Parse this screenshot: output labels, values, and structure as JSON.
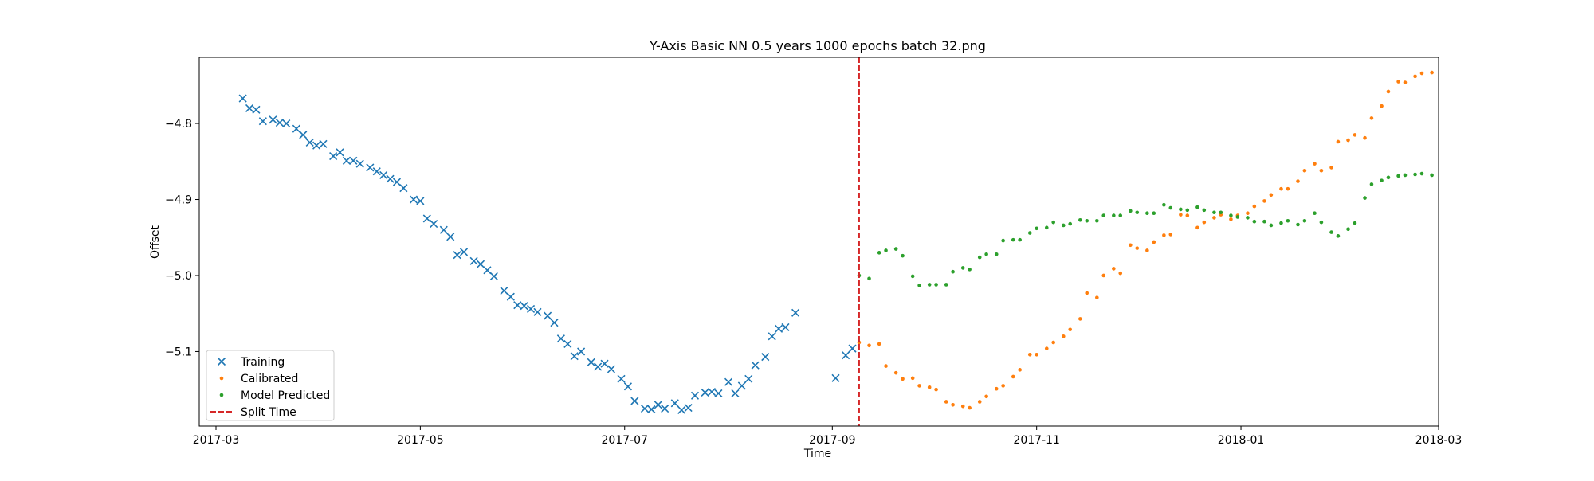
{
  "chart_data": {
    "type": "scatter",
    "title": "Y-Axis Basic NN 0.5 years 1000 epochs batch 32.png",
    "xlabel": "Time",
    "ylabel": "Offset",
    "xlim": [
      "2017-02-24",
      "2018-03-01"
    ],
    "ylim": [
      -5.198,
      -4.713
    ],
    "x_ticks": [
      "2017-03-01",
      "2017-05-01",
      "2017-07-01",
      "2017-09-01",
      "2017-11-01",
      "2018-01-01",
      "2018-03-01"
    ],
    "x_tick_labels": [
      "2017-03",
      "2017-05",
      "2017-07",
      "2017-09",
      "2017-11",
      "2018-01",
      "2018-03"
    ],
    "y_ticks": [
      -5.1,
      -5.0,
      -4.9,
      -4.8
    ],
    "y_tick_labels": [
      "−5.1",
      "−5.0",
      "−4.9",
      "−4.8"
    ],
    "grid": false,
    "legend_position": "lower-left",
    "split_time": "2017-09-09",
    "series": [
      {
        "name": "Training",
        "marker": "x",
        "color": "#1f77b4",
        "points": [
          [
            "2017-03-09",
            -4.767
          ],
          [
            "2017-03-11",
            -4.78
          ],
          [
            "2017-03-13",
            -4.782
          ],
          [
            "2017-03-15",
            -4.797
          ],
          [
            "2017-03-18",
            -4.795
          ],
          [
            "2017-03-20",
            -4.799
          ],
          [
            "2017-03-22",
            -4.8
          ],
          [
            "2017-03-25",
            -4.807
          ],
          [
            "2017-03-27",
            -4.815
          ],
          [
            "2017-03-29",
            -4.825
          ],
          [
            "2017-03-31",
            -4.829
          ],
          [
            "2017-04-02",
            -4.827
          ],
          [
            "2017-04-05",
            -4.843
          ],
          [
            "2017-04-07",
            -4.838
          ],
          [
            "2017-04-09",
            -4.849
          ],
          [
            "2017-04-11",
            -4.849
          ],
          [
            "2017-04-13",
            -4.853
          ],
          [
            "2017-04-16",
            -4.858
          ],
          [
            "2017-04-18",
            -4.863
          ],
          [
            "2017-04-20",
            -4.868
          ],
          [
            "2017-04-22",
            -4.873
          ],
          [
            "2017-04-24",
            -4.877
          ],
          [
            "2017-04-26",
            -4.885
          ],
          [
            "2017-04-29",
            -4.9
          ],
          [
            "2017-05-01",
            -4.902
          ],
          [
            "2017-05-03",
            -4.925
          ],
          [
            "2017-05-05",
            -4.932
          ],
          [
            "2017-05-08",
            -4.94
          ],
          [
            "2017-05-10",
            -4.949
          ],
          [
            "2017-05-12",
            -4.973
          ],
          [
            "2017-05-14",
            -4.969
          ],
          [
            "2017-05-17",
            -4.981
          ],
          [
            "2017-05-19",
            -4.985
          ],
          [
            "2017-05-21",
            -4.993
          ],
          [
            "2017-05-23",
            -5.001
          ],
          [
            "2017-05-26",
            -5.02
          ],
          [
            "2017-05-28",
            -5.028
          ],
          [
            "2017-05-30",
            -5.039
          ],
          [
            "2017-06-01",
            -5.04
          ],
          [
            "2017-06-03",
            -5.044
          ],
          [
            "2017-06-05",
            -5.048
          ],
          [
            "2017-06-08",
            -5.053
          ],
          [
            "2017-06-10",
            -5.062
          ],
          [
            "2017-06-12",
            -5.083
          ],
          [
            "2017-06-14",
            -5.09
          ],
          [
            "2017-06-16",
            -5.106
          ],
          [
            "2017-06-18",
            -5.1
          ],
          [
            "2017-06-21",
            -5.114
          ],
          [
            "2017-06-23",
            -5.12
          ],
          [
            "2017-06-25",
            -5.116
          ],
          [
            "2017-06-27",
            -5.123
          ],
          [
            "2017-06-30",
            -5.136
          ],
          [
            "2017-07-02",
            -5.146
          ],
          [
            "2017-07-04",
            -5.165
          ],
          [
            "2017-07-07",
            -5.175
          ],
          [
            "2017-07-09",
            -5.176
          ],
          [
            "2017-07-11",
            -5.17
          ],
          [
            "2017-07-13",
            -5.175
          ],
          [
            "2017-07-16",
            -5.168
          ],
          [
            "2017-07-18",
            -5.177
          ],
          [
            "2017-07-20",
            -5.174
          ],
          [
            "2017-07-22",
            -5.158
          ],
          [
            "2017-07-25",
            -5.154
          ],
          [
            "2017-07-27",
            -5.153
          ],
          [
            "2017-07-29",
            -5.155
          ],
          [
            "2017-08-01",
            -5.14
          ],
          [
            "2017-08-03",
            -5.155
          ],
          [
            "2017-08-05",
            -5.145
          ],
          [
            "2017-08-07",
            -5.136
          ],
          [
            "2017-08-09",
            -5.118
          ],
          [
            "2017-08-12",
            -5.107
          ],
          [
            "2017-08-14",
            -5.08
          ],
          [
            "2017-08-16",
            -5.07
          ],
          [
            "2017-08-18",
            -5.068
          ],
          [
            "2017-08-21",
            -5.049
          ],
          [
            "2017-09-02",
            -5.135
          ],
          [
            "2017-09-05",
            -5.105
          ],
          [
            "2017-09-07",
            -5.096
          ]
        ]
      },
      {
        "name": "Calibrated",
        "marker": ".",
        "color": "#ff7f0e",
        "points": [
          [
            "2017-09-09",
            -5.088
          ],
          [
            "2017-09-12",
            -5.092
          ],
          [
            "2017-09-15",
            -5.09
          ],
          [
            "2017-09-17",
            -5.119
          ],
          [
            "2017-09-20",
            -5.128
          ],
          [
            "2017-09-22",
            -5.136
          ],
          [
            "2017-09-25",
            -5.135
          ],
          [
            "2017-09-27",
            -5.145
          ],
          [
            "2017-09-30",
            -5.147
          ],
          [
            "2017-10-02",
            -5.15
          ],
          [
            "2017-10-05",
            -5.166
          ],
          [
            "2017-10-07",
            -5.17
          ],
          [
            "2017-10-10",
            -5.172
          ],
          [
            "2017-10-12",
            -5.174
          ],
          [
            "2017-10-15",
            -5.166
          ],
          [
            "2017-10-17",
            -5.159
          ],
          [
            "2017-10-20",
            -5.149
          ],
          [
            "2017-10-22",
            -5.145
          ],
          [
            "2017-10-25",
            -5.133
          ],
          [
            "2017-10-27",
            -5.124
          ],
          [
            "2017-10-30",
            -5.104
          ],
          [
            "2017-11-01",
            -5.104
          ],
          [
            "2017-11-04",
            -5.096
          ],
          [
            "2017-11-06",
            -5.088
          ],
          [
            "2017-11-09",
            -5.08
          ],
          [
            "2017-11-11",
            -5.071
          ],
          [
            "2017-11-14",
            -5.057
          ],
          [
            "2017-11-16",
            -5.023
          ],
          [
            "2017-11-19",
            -5.029
          ],
          [
            "2017-11-21",
            -5.0
          ],
          [
            "2017-11-24",
            -4.991
          ],
          [
            "2017-11-26",
            -4.997
          ],
          [
            "2017-11-29",
            -4.96
          ],
          [
            "2017-12-01",
            -4.964
          ],
          [
            "2017-12-04",
            -4.967
          ],
          [
            "2017-12-06",
            -4.956
          ],
          [
            "2017-12-09",
            -4.947
          ],
          [
            "2017-12-11",
            -4.946
          ],
          [
            "2017-12-14",
            -4.92
          ],
          [
            "2017-12-16",
            -4.921
          ],
          [
            "2017-12-19",
            -4.937
          ],
          [
            "2017-12-21",
            -4.93
          ],
          [
            "2017-12-24",
            -4.924
          ],
          [
            "2017-12-26",
            -4.92
          ],
          [
            "2017-12-29",
            -4.926
          ],
          [
            "2017-12-31",
            -4.921
          ],
          [
            "2018-01-03",
            -4.918
          ],
          [
            "2018-01-05",
            -4.909
          ],
          [
            "2018-01-08",
            -4.902
          ],
          [
            "2018-01-10",
            -4.894
          ],
          [
            "2018-01-13",
            -4.886
          ],
          [
            "2018-01-15",
            -4.886
          ],
          [
            "2018-01-18",
            -4.876
          ],
          [
            "2018-01-20",
            -4.862
          ],
          [
            "2018-01-23",
            -4.853
          ],
          [
            "2018-01-25",
            -4.862
          ],
          [
            "2018-01-28",
            -4.858
          ],
          [
            "2018-01-30",
            -4.824
          ],
          [
            "2018-02-02",
            -4.822
          ],
          [
            "2018-02-04",
            -4.815
          ],
          [
            "2018-02-07",
            -4.819
          ],
          [
            "2018-02-09",
            -4.793
          ],
          [
            "2018-02-12",
            -4.777
          ],
          [
            "2018-02-14",
            -4.758
          ],
          [
            "2018-02-17",
            -4.745
          ],
          [
            "2018-02-19",
            -4.746
          ],
          [
            "2018-02-22",
            -4.738
          ],
          [
            "2018-02-24",
            -4.734
          ],
          [
            "2018-02-27",
            -4.733
          ]
        ]
      },
      {
        "name": "Model Predicted",
        "marker": ".",
        "color": "#2ca02c",
        "points": [
          [
            "2017-09-09",
            -5.0
          ],
          [
            "2017-09-12",
            -5.004
          ],
          [
            "2017-09-15",
            -4.97
          ],
          [
            "2017-09-17",
            -4.967
          ],
          [
            "2017-09-20",
            -4.965
          ],
          [
            "2017-09-22",
            -4.974
          ],
          [
            "2017-09-25",
            -5.001
          ],
          [
            "2017-09-27",
            -5.013
          ],
          [
            "2017-09-30",
            -5.012
          ],
          [
            "2017-10-02",
            -5.012
          ],
          [
            "2017-10-05",
            -5.012
          ],
          [
            "2017-10-07",
            -4.995
          ],
          [
            "2017-10-10",
            -4.99
          ],
          [
            "2017-10-12",
            -4.992
          ],
          [
            "2017-10-15",
            -4.976
          ],
          [
            "2017-10-17",
            -4.972
          ],
          [
            "2017-10-20",
            -4.972
          ],
          [
            "2017-10-22",
            -4.954
          ],
          [
            "2017-10-25",
            -4.953
          ],
          [
            "2017-10-27",
            -4.953
          ],
          [
            "2017-10-30",
            -4.944
          ],
          [
            "2017-11-01",
            -4.938
          ],
          [
            "2017-11-04",
            -4.937
          ],
          [
            "2017-11-06",
            -4.93
          ],
          [
            "2017-11-09",
            -4.934
          ],
          [
            "2017-11-11",
            -4.932
          ],
          [
            "2017-11-14",
            -4.927
          ],
          [
            "2017-11-16",
            -4.928
          ],
          [
            "2017-11-19",
            -4.928
          ],
          [
            "2017-11-21",
            -4.921
          ],
          [
            "2017-11-24",
            -4.921
          ],
          [
            "2017-11-26",
            -4.921
          ],
          [
            "2017-11-29",
            -4.915
          ],
          [
            "2017-12-01",
            -4.917
          ],
          [
            "2017-12-04",
            -4.918
          ],
          [
            "2017-12-06",
            -4.918
          ],
          [
            "2017-12-09",
            -4.907
          ],
          [
            "2017-12-11",
            -4.911
          ],
          [
            "2017-12-14",
            -4.913
          ],
          [
            "2017-12-16",
            -4.914
          ],
          [
            "2017-12-19",
            -4.91
          ],
          [
            "2017-12-21",
            -4.914
          ],
          [
            "2017-12-24",
            -4.917
          ],
          [
            "2017-12-26",
            -4.917
          ],
          [
            "2017-12-29",
            -4.921
          ],
          [
            "2017-12-31",
            -4.923
          ],
          [
            "2018-01-03",
            -4.924
          ],
          [
            "2018-01-05",
            -4.929
          ],
          [
            "2018-01-08",
            -4.929
          ],
          [
            "2018-01-10",
            -4.934
          ],
          [
            "2018-01-13",
            -4.931
          ],
          [
            "2018-01-15",
            -4.928
          ],
          [
            "2018-01-18",
            -4.933
          ],
          [
            "2018-01-20",
            -4.928
          ],
          [
            "2018-01-23",
            -4.918
          ],
          [
            "2018-01-25",
            -4.93
          ],
          [
            "2018-01-28",
            -4.943
          ],
          [
            "2018-01-30",
            -4.948
          ],
          [
            "2018-02-02",
            -4.939
          ],
          [
            "2018-02-04",
            -4.931
          ],
          [
            "2018-02-07",
            -4.898
          ],
          [
            "2018-02-09",
            -4.88
          ],
          [
            "2018-02-12",
            -4.875
          ],
          [
            "2018-02-14",
            -4.871
          ],
          [
            "2018-02-17",
            -4.869
          ],
          [
            "2018-02-19",
            -4.868
          ],
          [
            "2018-02-22",
            -4.867
          ],
          [
            "2018-02-24",
            -4.866
          ],
          [
            "2018-02-27",
            -4.868
          ]
        ]
      }
    ],
    "reference_lines": [
      {
        "name": "Split Time",
        "x": "2017-09-09",
        "style": "dashed",
        "color": "#d62728"
      }
    ]
  }
}
